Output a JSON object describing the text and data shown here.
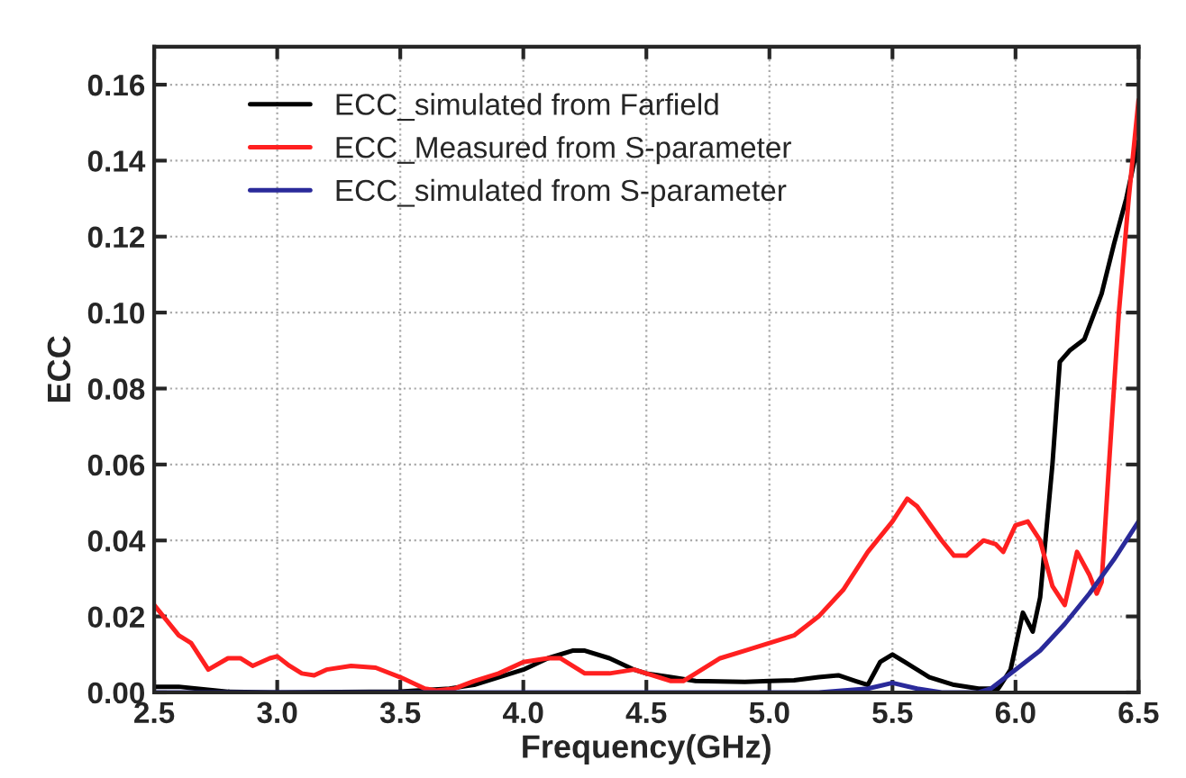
{
  "chart_data": {
    "type": "line",
    "xlabel": "Frequency(GHz)",
    "ylabel": "ECC",
    "xlim": [
      2.5,
      6.5
    ],
    "xticks": [
      {
        "value": 2.5,
        "label": "2.5"
      },
      {
        "value": 3.0,
        "label": "3.0"
      },
      {
        "value": 3.5,
        "label": "3.5"
      },
      {
        "value": 4.0,
        "label": "4.0"
      },
      {
        "value": 4.5,
        "label": "4.5"
      },
      {
        "value": 5.0,
        "label": "5.0"
      },
      {
        "value": 5.5,
        "label": "5.5"
      },
      {
        "value": 6.0,
        "label": "6.0"
      },
      {
        "value": 6.5,
        "label": "6.5"
      }
    ],
    "ylim": [
      0,
      0.17
    ],
    "yticks": [
      {
        "value": 0,
        "label": "0.00"
      },
      {
        "value": 0.02,
        "label": "0.02"
      },
      {
        "value": 0.04,
        "label": "0.04"
      },
      {
        "value": 0.06,
        "label": "0.06"
      },
      {
        "value": 0.08,
        "label": "0.08"
      },
      {
        "value": 0.1,
        "label": "0.10"
      },
      {
        "value": 0.12,
        "label": "0.12"
      },
      {
        "value": 0.14,
        "label": "0.14"
      },
      {
        "value": 0.16,
        "label": "0.16"
      }
    ],
    "grid": true,
    "legend": "top left",
    "series": [
      {
        "name": "ECC_simulated from Farfield",
        "color": "#000000",
        "x": [
          2.5,
          2.6,
          2.7,
          2.8,
          3.0,
          3.5,
          3.7,
          3.8,
          3.9,
          4.0,
          4.1,
          4.2,
          4.25,
          4.35,
          4.45,
          4.5,
          4.6,
          4.7,
          4.9,
          5.0,
          5.1,
          5.2,
          5.28,
          5.35,
          5.4,
          5.45,
          5.5,
          5.55,
          5.65,
          5.75,
          5.85,
          5.93,
          5.98,
          6.03,
          6.07,
          6.1,
          6.15,
          6.18,
          6.22,
          6.28,
          6.35,
          6.4,
          6.45,
          6.5
        ],
        "values": [
          0.0015,
          0.0015,
          0.0008,
          0.0002,
          0,
          0.0002,
          0.001,
          0.002,
          0.004,
          0.006,
          0.009,
          0.011,
          0.011,
          0.009,
          0.006,
          0.005,
          0.004,
          0.003,
          0.0028,
          0.003,
          0.0032,
          0.004,
          0.0045,
          0.003,
          0.002,
          0.008,
          0.01,
          0.008,
          0.004,
          0.002,
          0.001,
          0.001,
          0.006,
          0.021,
          0.016,
          0.025,
          0.06,
          0.087,
          0.09,
          0.093,
          0.105,
          0.118,
          0.13,
          0.145
        ]
      },
      {
        "name": "ECC_Measured from S-parameter",
        "color": "#ff2020",
        "x": [
          2.5,
          2.6,
          2.65,
          2.72,
          2.8,
          2.85,
          2.9,
          2.97,
          3.0,
          3.05,
          3.1,
          3.15,
          3.2,
          3.3,
          3.4,
          3.5,
          3.6,
          3.65,
          3.72,
          3.8,
          3.9,
          4.0,
          4.1,
          4.15,
          4.25,
          4.35,
          4.45,
          4.5,
          4.6,
          4.65,
          4.7,
          4.8,
          4.9,
          5.0,
          5.1,
          5.2,
          5.3,
          5.4,
          5.5,
          5.56,
          5.6,
          5.7,
          5.75,
          5.8,
          5.87,
          5.92,
          5.95,
          6.0,
          6.05,
          6.1,
          6.15,
          6.2,
          6.25,
          6.3,
          6.33,
          6.35,
          6.38,
          6.42,
          6.46,
          6.5
        ],
        "values": [
          0.023,
          0.015,
          0.013,
          0.006,
          0.009,
          0.009,
          0.007,
          0.009,
          0.0095,
          0.007,
          0.005,
          0.0045,
          0.006,
          0.007,
          0.0065,
          0.004,
          0.001,
          0.0005,
          0.001,
          0.003,
          0.005,
          0.008,
          0.009,
          0.009,
          0.005,
          0.005,
          0.006,
          0.005,
          0.003,
          0.003,
          0.005,
          0.009,
          0.011,
          0.013,
          0.015,
          0.02,
          0.027,
          0.037,
          0.045,
          0.051,
          0.049,
          0.04,
          0.036,
          0.036,
          0.04,
          0.039,
          0.037,
          0.044,
          0.045,
          0.04,
          0.028,
          0.023,
          0.037,
          0.031,
          0.026,
          0.029,
          0.06,
          0.1,
          0.13,
          0.156
        ]
      },
      {
        "name": "ECC_simulated from S-parameter",
        "color": "#2a2a9a",
        "x": [
          2.5,
          3.0,
          4.0,
          5.0,
          5.2,
          5.4,
          5.5,
          5.6,
          5.7,
          5.85,
          5.9,
          6.0,
          6.1,
          6.2,
          6.3,
          6.4,
          6.5
        ],
        "values": [
          0,
          0,
          0,
          0,
          0,
          0.001,
          0.0025,
          0.001,
          0,
          0,
          0.001,
          0.006,
          0.011,
          0.018,
          0.026,
          0.035,
          0.045
        ]
      }
    ]
  }
}
